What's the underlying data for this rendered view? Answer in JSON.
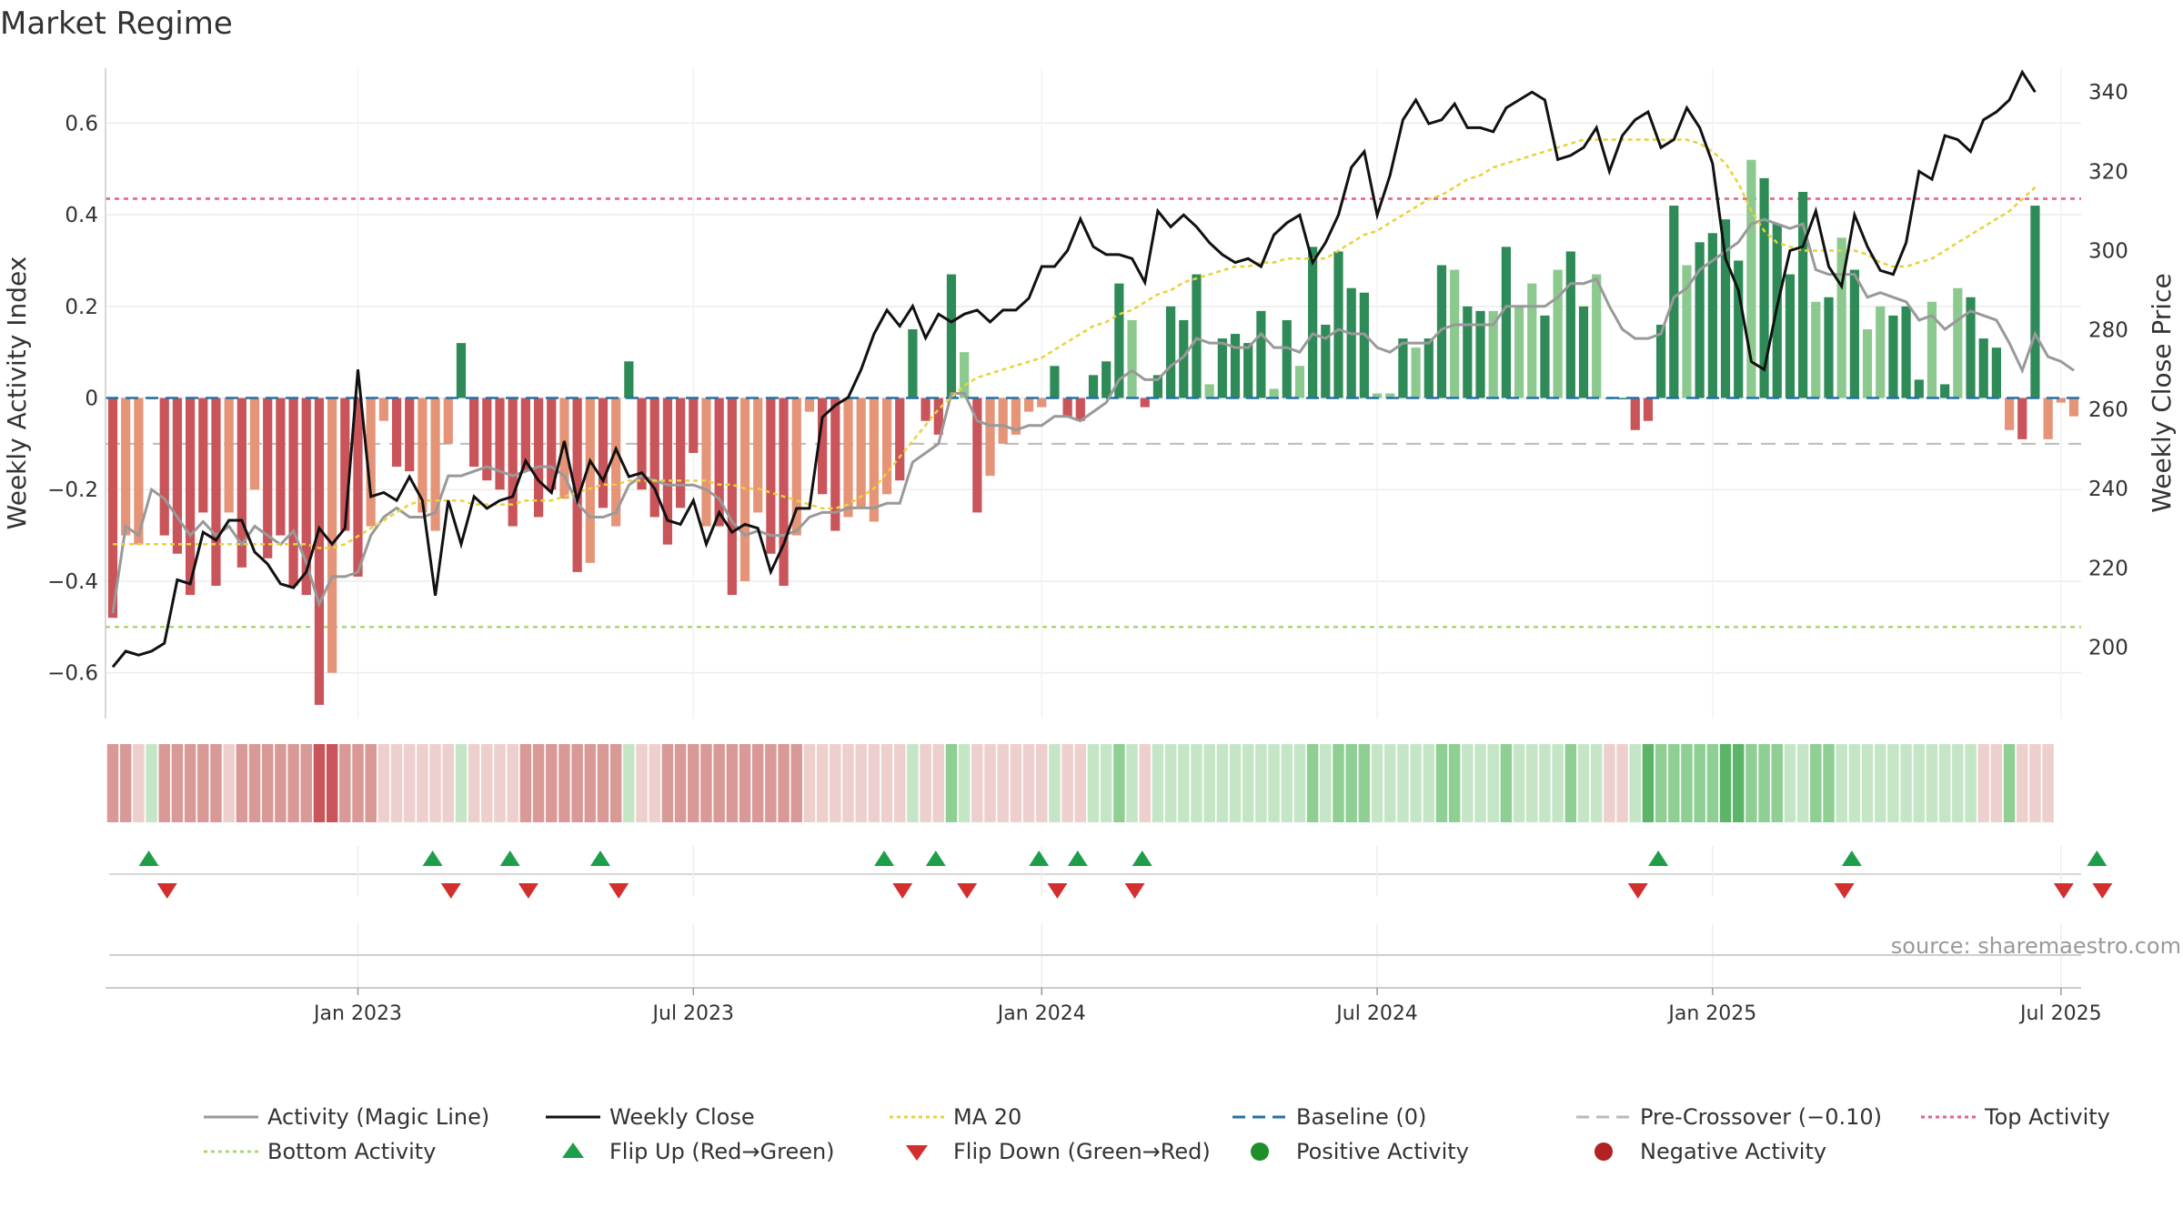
{
  "chart_data": {
    "type": "bar",
    "title": "Market Regime",
    "source_note": "source: sharemaestro.com",
    "ylabel_left": "Weekly Activity Index",
    "ylabel_right": "Weekly Close Price",
    "ylim_left": [
      -0.7,
      0.72
    ],
    "ylim_right": [
      182,
      346
    ],
    "y_ticks_left": [
      0.6,
      0.4,
      0.2,
      0,
      -0.2,
      -0.4,
      -0.6
    ],
    "y_tick_labels_left": [
      "0.6",
      "0.4",
      "0.2",
      "0",
      "−0.2",
      "−0.4",
      "−0.6"
    ],
    "y_ticks_right": [
      340,
      320,
      300,
      280,
      260,
      240,
      220,
      200
    ],
    "y_tick_labels_right": [
      "340",
      "320",
      "300",
      "280",
      "260",
      "240",
      "220",
      "200"
    ],
    "x_tick_weeks": [
      19,
      45,
      72,
      98,
      124,
      151
    ],
    "x_tick_labels": [
      "Jan 2023",
      "Jul 2023",
      "Jan 2024",
      "Jul 2024",
      "Jan 2025",
      "Jul 2025"
    ],
    "reference_lines": {
      "top_activity": 0.435,
      "bottom_activity": -0.5,
      "baseline": 0,
      "pre_crossover": -0.1
    },
    "grid": true,
    "legend_position": "bottom",
    "colors": {
      "strong_negative": "#c9545a",
      "mild_negative": "#e59477",
      "strong_positive": "#2e8b57",
      "mild_positive": "#8cc98e",
      "magic_line": "#999999",
      "weekly_close": "#111111",
      "ma20": "#e8d23a",
      "baseline": "#2471a3",
      "pre_crossover": "#bbbbbb",
      "top_activity": "#e06080",
      "bottom_activity": "#a8d878",
      "flip_up": "#1f9e4a",
      "flip_down": "#d32f2f",
      "positive_activity": "#1e8f2a",
      "negative_activity": "#b22222"
    },
    "legend": [
      {
        "label": "Activity (Magic Line)",
        "kind": "line",
        "color": "#999999",
        "dash": ""
      },
      {
        "label": "Weekly Close",
        "kind": "line",
        "color": "#111111",
        "dash": ""
      },
      {
        "label": "MA 20",
        "kind": "line",
        "color": "#e8d23a",
        "dash": "4,4"
      },
      {
        "label": "Baseline (0)",
        "kind": "line",
        "color": "#2471a3",
        "dash": "14,8"
      },
      {
        "label": "Pre-Crossover (−0.10)",
        "kind": "line",
        "color": "#bbbbbb",
        "dash": "14,8"
      },
      {
        "label": "Top Activity",
        "kind": "line",
        "color": "#e06080",
        "dash": "4,4"
      },
      {
        "label": "Bottom Activity",
        "kind": "line",
        "color": "#a8d878",
        "dash": "4,4"
      },
      {
        "label": "Flip Up (Red→Green)",
        "kind": "up",
        "color": "#1f9e4a",
        "dash": ""
      },
      {
        "label": "Flip Down (Green→Red)",
        "kind": "down",
        "color": "#d32f2f",
        "dash": ""
      },
      {
        "label": "Positive Activity",
        "kind": "dot",
        "color": "#1e8f2a",
        "dash": ""
      },
      {
        "label": "Negative Activity",
        "kind": "dot",
        "color": "#b22222",
        "dash": ""
      }
    ],
    "activity_bars": [
      -0.48,
      -0.3,
      -0.32,
      0,
      -0.3,
      -0.34,
      -0.43,
      -0.25,
      -0.41,
      -0.25,
      -0.37,
      -0.2,
      -0.35,
      -0.3,
      -0.41,
      -0.43,
      -0.67,
      -0.6,
      -0.29,
      -0.39,
      -0.28,
      -0.05,
      -0.15,
      -0.16,
      -0.25,
      -0.29,
      -0.1,
      0.12,
      -0.15,
      -0.18,
      -0.2,
      -0.28,
      -0.16,
      -0.26,
      -0.2,
      -0.22,
      -0.38,
      -0.36,
      -0.24,
      -0.28,
      0.08,
      -0.2,
      -0.26,
      -0.32,
      -0.24,
      -0.12,
      -0.28,
      -0.28,
      -0.43,
      -0.4,
      -0.25,
      -0.34,
      -0.41,
      -0.3,
      -0.03,
      -0.21,
      -0.29,
      -0.26,
      -0.24,
      -0.27,
      -0.21,
      -0.18,
      0.15,
      -0.05,
      -0.08,
      0.27,
      0.1,
      -0.25,
      -0.17,
      -0.1,
      -0.08,
      -0.03,
      -0.02,
      0.07,
      -0.04,
      -0.05,
      0.05,
      0.08,
      0.25,
      0.17,
      -0.02,
      0.05,
      0.2,
      0.17,
      0.27,
      0.03,
      0.13,
      0.14,
      0.12,
      0.19,
      0.02,
      0.17,
      0.07,
      0.33,
      0.16,
      0.32,
      0.24,
      0.23,
      0.01,
      0.01,
      0.13,
      0.11,
      0.13,
      0.29,
      0.28,
      0.2,
      0.19,
      0.19,
      0.33,
      0.2,
      0.25,
      0.18,
      0.28,
      0.32,
      0.2,
      0.27,
      0.0,
      0.0,
      -0.07,
      -0.05,
      0.16,
      0.42,
      0.29,
      0.34,
      0.36,
      0.39,
      0.3,
      0.52,
      0.48,
      0.38,
      0.27,
      0.45,
      0.21,
      0.22,
      0.35,
      0.28,
      0.15,
      0.2,
      0.18,
      0.2,
      0.04,
      0.21,
      0.03,
      0.24,
      0.22,
      0.13,
      0.11,
      -0.07,
      -0.09,
      0.42,
      -0.09,
      -0.01,
      -0.04
    ],
    "bar_tiers": [
      2,
      1,
      1,
      1,
      2,
      2,
      2,
      2,
      2,
      1,
      2,
      1,
      2,
      2,
      2,
      2,
      2,
      1,
      2,
      2,
      1,
      1,
      2,
      2,
      1,
      1,
      1,
      2,
      2,
      2,
      2,
      2,
      2,
      2,
      2,
      1,
      2,
      1,
      2,
      1,
      2,
      2,
      2,
      2,
      2,
      2,
      1,
      2,
      2,
      1,
      1,
      2,
      2,
      1,
      1,
      2,
      2,
      1,
      1,
      1,
      1,
      2,
      2,
      2,
      2,
      2,
      1,
      2,
      1,
      1,
      1,
      1,
      1,
      2,
      2,
      2,
      2,
      2,
      2,
      1,
      2,
      2,
      2,
      2,
      2,
      1,
      2,
      2,
      2,
      2,
      1,
      2,
      1,
      2,
      2,
      2,
      2,
      2,
      1,
      1,
      2,
      1,
      2,
      2,
      1,
      2,
      2,
      1,
      2,
      1,
      1,
      2,
      1,
      2,
      2,
      1,
      1,
      2,
      2,
      2,
      2,
      2,
      1,
      2,
      2,
      2,
      2,
      1,
      2,
      2,
      2,
      2,
      1,
      2,
      1,
      2,
      1,
      1,
      2,
      2,
      2,
      1,
      2,
      1,
      2,
      2,
      2,
      1,
      2,
      2,
      1,
      1,
      1,
      1,
      2,
      1,
      1
    ],
    "magic_line": [
      -0.47,
      -0.28,
      -0.3,
      -0.2,
      -0.22,
      -0.26,
      -0.3,
      -0.27,
      -0.3,
      -0.28,
      -0.32,
      -0.28,
      -0.3,
      -0.32,
      -0.29,
      -0.36,
      -0.45,
      -0.39,
      -0.39,
      -0.38,
      -0.3,
      -0.26,
      -0.24,
      -0.26,
      -0.26,
      -0.25,
      -0.17,
      -0.17,
      -0.16,
      -0.15,
      -0.16,
      -0.17,
      -0.16,
      -0.15,
      -0.15,
      -0.17,
      -0.23,
      -0.26,
      -0.26,
      -0.25,
      -0.19,
      -0.17,
      -0.18,
      -0.19,
      -0.19,
      -0.19,
      -0.2,
      -0.22,
      -0.27,
      -0.3,
      -0.29,
      -0.3,
      -0.3,
      -0.29,
      -0.26,
      -0.25,
      -0.25,
      -0.24,
      -0.24,
      -0.24,
      -0.23,
      -0.23,
      -0.14,
      -0.12,
      -0.1,
      0.01,
      0.01,
      -0.05,
      -0.06,
      -0.06,
      -0.07,
      -0.06,
      -0.06,
      -0.04,
      -0.04,
      -0.05,
      -0.03,
      -0.01,
      0.04,
      0.06,
      0.04,
      0.04,
      0.07,
      0.09,
      0.13,
      0.12,
      0.12,
      0.11,
      0.11,
      0.14,
      0.11,
      0.11,
      0.1,
      0.14,
      0.13,
      0.15,
      0.14,
      0.14,
      0.11,
      0.1,
      0.12,
      0.12,
      0.12,
      0.15,
      0.16,
      0.16,
      0.16,
      0.16,
      0.2,
      0.2,
      0.2,
      0.2,
      0.22,
      0.25,
      0.25,
      0.26,
      0.2,
      0.15,
      0.13,
      0.13,
      0.14,
      0.22,
      0.24,
      0.28,
      0.3,
      0.32,
      0.34,
      0.38,
      0.39,
      0.38,
      0.37,
      0.38,
      0.28,
      0.27,
      0.27,
      0.27,
      0.22,
      0.23,
      0.22,
      0.21,
      0.17,
      0.18,
      0.15,
      0.17,
      0.19,
      0.18,
      0.17,
      0.12,
      0.06,
      0.14,
      0.09,
      0.08,
      0.06
    ],
    "weekly_close": [
      195,
      199,
      198,
      199,
      201,
      217,
      216,
      229,
      227,
      232,
      232,
      224,
      221,
      216,
      215,
      219,
      230,
      226,
      230,
      270,
      238,
      239,
      237,
      243,
      237,
      213,
      237,
      226,
      238,
      235,
      237,
      238,
      247,
      242,
      239,
      252,
      237,
      247,
      242,
      250,
      243,
      244,
      240,
      232,
      231,
      237,
      226,
      234,
      229,
      231,
      230,
      219,
      226,
      235,
      235,
      258,
      261,
      263,
      270,
      279,
      285,
      281,
      286,
      278,
      284,
      282,
      284,
      285,
      282,
      285,
      285,
      288,
      296,
      296,
      300,
      308,
      301,
      299,
      299,
      298,
      292,
      310,
      306,
      309,
      306,
      302,
      299,
      297,
      298,
      296,
      304,
      307,
      309,
      297,
      302,
      309,
      321,
      325,
      309,
      319,
      333,
      338,
      332,
      333,
      337,
      331,
      331,
      330,
      336,
      338,
      340,
      338,
      323,
      324,
      326,
      331,
      320,
      329,
      333,
      335,
      326,
      328,
      336,
      331,
      322,
      298,
      290,
      272,
      270,
      286,
      300,
      301,
      310,
      296,
      291,
      309,
      301,
      295,
      294,
      302,
      320,
      318,
      329,
      328,
      325,
      333,
      335,
      338,
      345,
      340
    ],
    "ma20": [
      226,
      226,
      226,
      226,
      226,
      226,
      226,
      226,
      226,
      226,
      226,
      226,
      226,
      226,
      226,
      226,
      225,
      225,
      226,
      228,
      230,
      232,
      234,
      236,
      237,
      237,
      237,
      237,
      236,
      236,
      236,
      236,
      237,
      237,
      237,
      238,
      239,
      240,
      241,
      241,
      242,
      242,
      242,
      242,
      242,
      242,
      242,
      241,
      241,
      240,
      240,
      239,
      238,
      237,
      236,
      235,
      235,
      236,
      238,
      240,
      244,
      248,
      252,
      256,
      260,
      263,
      266,
      268,
      269,
      270,
      271,
      272,
      273,
      275,
      277,
      279,
      281,
      282,
      284,
      285,
      287,
      289,
      290,
      292,
      293,
      294,
      295,
      296,
      296,
      297,
      297,
      298,
      298,
      298,
      298,
      300,
      302,
      304,
      305,
      307,
      309,
      311,
      313,
      314,
      316,
      318,
      319,
      321,
      322,
      323,
      324,
      325,
      326,
      327,
      328,
      328,
      328,
      328,
      328,
      328,
      328,
      328,
      328,
      327,
      325,
      322,
      317,
      310,
      305,
      302,
      301,
      300,
      300,
      300,
      300,
      300,
      299,
      297,
      296,
      296,
      297,
      298,
      300,
      302,
      304,
      306,
      308,
      310,
      313,
      316
    ],
    "regime_levels": [
      -2,
      -2,
      -1,
      1,
      -2,
      -2,
      -2,
      -2,
      -2,
      -1,
      -2,
      -2,
      -2,
      -2,
      -2,
      -2,
      -3,
      -3,
      -2,
      -2,
      -2,
      -1,
      -1,
      -1,
      -1,
      -1,
      -1,
      1,
      -1,
      -1,
      -1,
      -1,
      -2,
      -2,
      -2,
      -2,
      -2,
      -2,
      -2,
      -2,
      1,
      -1,
      -1,
      -2,
      -2,
      -2,
      -2,
      -2,
      -2,
      -2,
      -2,
      -2,
      -2,
      -2,
      -1,
      -1,
      -1,
      -1,
      -1,
      -1,
      -1,
      -1,
      1,
      -1,
      -1,
      2,
      1,
      -1,
      -1,
      -1,
      -1,
      -1,
      -1,
      1,
      -1,
      -1,
      1,
      1,
      2,
      1,
      -1,
      1,
      1,
      1,
      1,
      1,
      1,
      1,
      1,
      1,
      1,
      1,
      1,
      2,
      1,
      2,
      2,
      2,
      1,
      1,
      1,
      1,
      1,
      2,
      2,
      1,
      1,
      1,
      2,
      1,
      1,
      1,
      1,
      2,
      1,
      1,
      -1,
      -1,
      1,
      3,
      2,
      2,
      2,
      2,
      2,
      3,
      3,
      2,
      2,
      2,
      1,
      1,
      2,
      2,
      1,
      1,
      1,
      1,
      1,
      1,
      1,
      1,
      1,
      1,
      1,
      -1,
      -1,
      2,
      -1,
      -1,
      -1
    ],
    "flip_up_weeks": [
      3,
      25,
      31,
      38,
      60,
      64,
      72,
      75,
      80,
      120,
      135,
      154
    ],
    "flip_down_weeks": [
      4,
      26,
      32,
      39,
      61,
      66,
      73,
      79,
      118,
      134,
      151,
      154
    ]
  }
}
